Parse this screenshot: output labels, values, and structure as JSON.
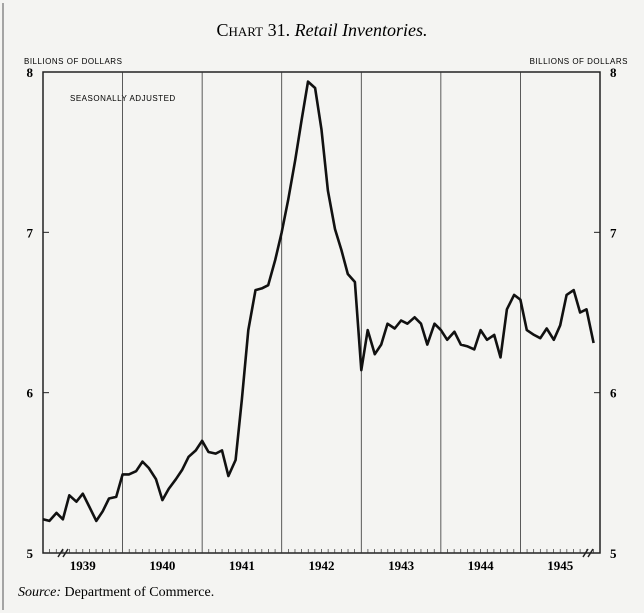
{
  "chart_data": {
    "type": "line",
    "chart_label": "Chart 31.",
    "title": "Retail Inventories.",
    "y_label_left": "BILLIONS OF DOLLARS",
    "y_label_right": "BILLIONS OF DOLLARS",
    "annotation": "SEASONALLY ADJUSTED",
    "source_label": "Source:",
    "source": "Department of Commerce.",
    "color": "#111111",
    "xlim": [
      1939,
      1946
    ],
    "xticks": [
      {
        "value": 1939.5,
        "label": "1939"
      },
      {
        "value": 1940.5,
        "label": "1940"
      },
      {
        "value": 1941.5,
        "label": "1941"
      },
      {
        "value": 1942.5,
        "label": "1942"
      },
      {
        "value": 1943.5,
        "label": "1943"
      },
      {
        "value": 1944.5,
        "label": "1944"
      },
      {
        "value": 1945.5,
        "label": "1945"
      }
    ],
    "ylim": [
      5,
      8
    ],
    "yticks": [
      5,
      6,
      7,
      8
    ],
    "x": [
      1939,
      1939.08,
      1939.17,
      1939.25,
      1939.33,
      1939.42,
      1939.5,
      1939.58,
      1939.67,
      1939.75,
      1939.83,
      1939.92,
      1940,
      1940.08,
      1940.17,
      1940.25,
      1940.33,
      1940.42,
      1940.5,
      1940.58,
      1940.67,
      1940.75,
      1940.83,
      1940.92,
      1941,
      1941.08,
      1941.17,
      1941.25,
      1941.33,
      1941.42,
      1941.5,
      1941.58,
      1941.67,
      1941.75,
      1941.83,
      1941.92,
      1942,
      1942.08,
      1942.17,
      1942.25,
      1942.33,
      1942.42,
      1942.5,
      1942.58,
      1942.67,
      1942.75,
      1942.83,
      1942.92,
      1943,
      1943.08,
      1943.17,
      1943.25,
      1943.33,
      1943.42,
      1943.5,
      1943.58,
      1943.67,
      1943.75,
      1943.83,
      1943.92,
      1944,
      1944.08,
      1944.17,
      1944.25,
      1944.33,
      1944.42,
      1944.5,
      1944.58,
      1944.67,
      1944.75,
      1944.83,
      1944.92,
      1945,
      1945.08,
      1945.17,
      1945.25,
      1945.33,
      1945.42,
      1945.5,
      1945.58,
      1945.67,
      1945.75,
      1945.83,
      1945.92
    ],
    "values": [
      5.21,
      5.2,
      5.25,
      5.21,
      5.36,
      5.32,
      5.37,
      5.29,
      5.2,
      5.26,
      5.34,
      5.35,
      5.49,
      5.49,
      5.51,
      5.57,
      5.53,
      5.46,
      5.33,
      5.4,
      5.46,
      5.52,
      5.6,
      5.64,
      5.7,
      5.63,
      5.62,
      5.64,
      5.48,
      5.58,
      5.96,
      6.39,
      6.64,
      6.65,
      6.67,
      6.83,
      7.0,
      7.2,
      7.45,
      7.7,
      7.94,
      7.9,
      7.64,
      7.26,
      7.02,
      6.89,
      6.74,
      6.69,
      6.14,
      6.39,
      6.24,
      6.3,
      6.43,
      6.4,
      6.45,
      6.43,
      6.47,
      6.43,
      6.3,
      6.43,
      6.39,
      6.33,
      6.38,
      6.3,
      6.29,
      6.27,
      6.39,
      6.33,
      6.36,
      6.22,
      6.52,
      6.61,
      6.58,
      6.39,
      6.36,
      6.34,
      6.4,
      6.33,
      6.42,
      6.61,
      6.64,
      6.5,
      6.52,
      6.31
    ]
  }
}
